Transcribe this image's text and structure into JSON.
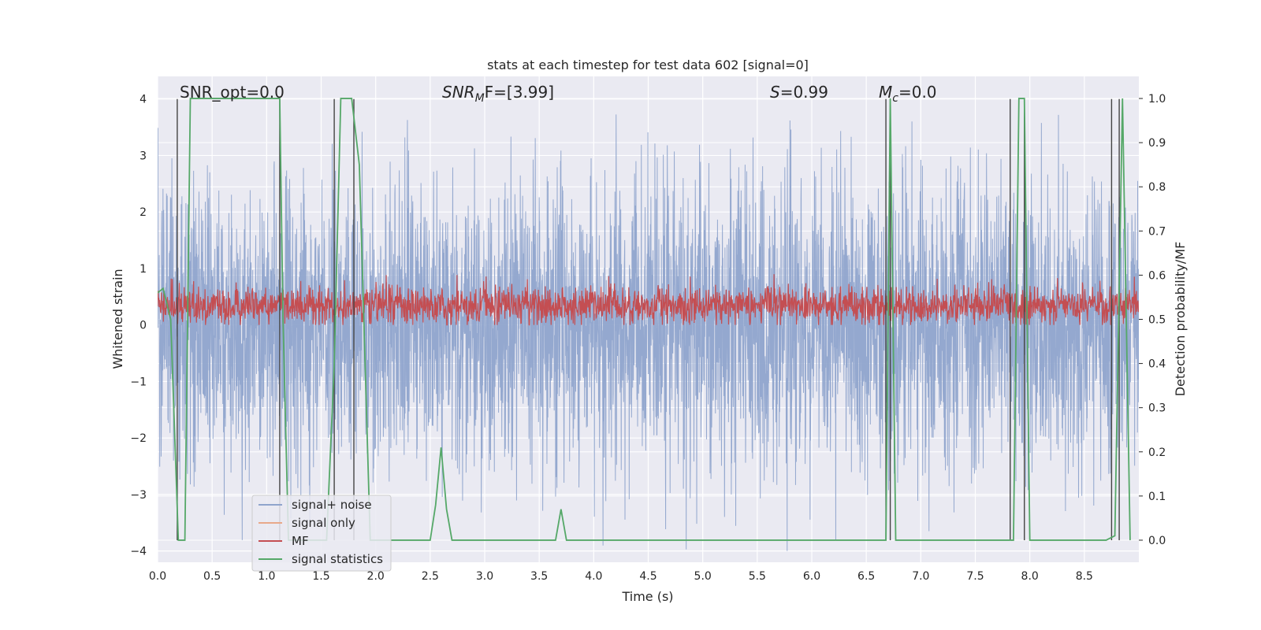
{
  "chart_data": {
    "type": "line",
    "title": "stats at each timestep for test data 602 [signal=0]",
    "xlabel": "Time (s)",
    "ylabel_left": "Whitened strain",
    "ylabel_right": "Detection probability/MF",
    "xlim": [
      0.0,
      9.0
    ],
    "ylim_left": [
      -4.2,
      4.4
    ],
    "ylim_right": [
      -0.05,
      1.05
    ],
    "x_ticks": [
      "0.0",
      "0.5",
      "1.0",
      "1.5",
      "2.0",
      "2.5",
      "3.0",
      "3.5",
      "4.0",
      "4.5",
      "5.0",
      "5.5",
      "6.0",
      "6.5",
      "7.0",
      "7.5",
      "8.0",
      "8.5"
    ],
    "y_ticks_left": [
      "−4",
      "−3",
      "−2",
      "−1",
      "0",
      "1",
      "2",
      "3",
      "4"
    ],
    "y_ticks_right": [
      "0.0",
      "0.1",
      "0.2",
      "0.3",
      "0.4",
      "0.5",
      "0.6",
      "0.7",
      "0.8",
      "0.9",
      "1.0"
    ],
    "grid": true,
    "legend_placement": "lower-left",
    "annotations": {
      "snr_opt": "SNR_opt=0.0",
      "snr_mf_main": "SNR",
      "snr_mf_sub": "M",
      "snr_mf_rest": "F=[3.99]",
      "s_main": "S",
      "s_rest": "=0.99",
      "mc_main": "M",
      "mc_sub": "c",
      "mc_rest": "=0.0"
    },
    "series": [
      {
        "name": "signal+ noise",
        "color": "#8fa4cc",
        "axis": "left",
        "description_range": [
          -4.0,
          4.0
        ]
      },
      {
        "name": "signal only",
        "color": "#e8a98a",
        "axis": "left",
        "values": []
      },
      {
        "name": "MF",
        "color": "#c44e52",
        "axis": "left",
        "typical_range": [
          0.0,
          0.9
        ]
      },
      {
        "name": "signal statistics",
        "color": "#55a868",
        "axis": "right",
        "x": [
          0.0,
          0.05,
          0.12,
          0.19,
          0.25,
          0.3,
          0.5,
          1.0,
          1.12,
          1.15,
          1.2,
          1.3,
          1.55,
          1.62,
          1.68,
          1.78,
          1.85,
          1.95,
          2.0,
          2.5,
          2.55,
          2.6,
          2.65,
          2.7,
          3.6,
          3.65,
          3.7,
          3.75,
          4.5,
          5.5,
          6.6,
          6.68,
          6.72,
          6.77,
          7.0,
          7.8,
          7.85,
          7.9,
          7.95,
          8.0,
          8.05,
          8.6,
          8.7,
          8.78,
          8.85,
          8.92
        ],
        "values": [
          0.56,
          0.57,
          0.5,
          0.0,
          0.0,
          1.0,
          1.0,
          1.0,
          1.0,
          0.5,
          0.0,
          0.0,
          0.0,
          0.4,
          1.0,
          1.0,
          0.85,
          0.0,
          0.0,
          0.0,
          0.08,
          0.21,
          0.07,
          0.0,
          0.0,
          0.0,
          0.07,
          0.0,
          0.0,
          0.0,
          0.0,
          0.0,
          1.0,
          0.0,
          0.0,
          0.0,
          0.0,
          1.0,
          1.0,
          0.0,
          0.0,
          0.0,
          0.0,
          0.01,
          1.0,
          0.0
        ]
      }
    ],
    "vertical_lines": [
      0.18,
      1.12,
      1.62,
      1.8,
      6.68,
      6.72,
      7.82,
      7.95,
      8.75,
      8.82
    ]
  }
}
